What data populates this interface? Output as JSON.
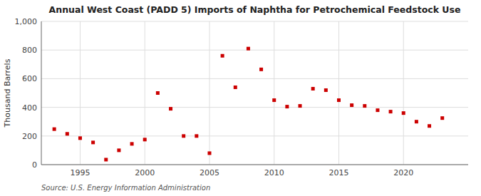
{
  "chart_data": {
    "type": "scatter",
    "title": "Annual West Coast (PADD 5) Imports of Naphtha for Petrochemical Feedstock Use",
    "y_label": "Thousand Barrels",
    "source": "Source: U.S. Energy Information Administration",
    "x": [
      1993,
      1994,
      1995,
      1996,
      1997,
      1998,
      1999,
      2000,
      2001,
      2002,
      2003,
      2004,
      2005,
      2006,
      2007,
      2008,
      2009,
      2010,
      2011,
      2012,
      2013,
      2014,
      2015,
      2016,
      2017,
      2018,
      2019,
      2020,
      2021,
      2022,
      2023
    ],
    "values": [
      248,
      215,
      185,
      155,
      35,
      100,
      145,
      175,
      500,
      390,
      200,
      200,
      80,
      760,
      540,
      810,
      665,
      450,
      405,
      410,
      530,
      520,
      450,
      415,
      410,
      380,
      370,
      360,
      300,
      270,
      325
    ],
    "color": "#cc0000",
    "marker": "square",
    "grid": true,
    "xlim": [
      1992,
      2025
    ],
    "xticks": [
      1995,
      2000,
      2005,
      2010,
      2015,
      2020
    ],
    "ylim": [
      0,
      1000
    ],
    "yticks": [
      0,
      200,
      400,
      600,
      800,
      {
        "value": 1000,
        "label": "1,000"
      }
    ]
  }
}
